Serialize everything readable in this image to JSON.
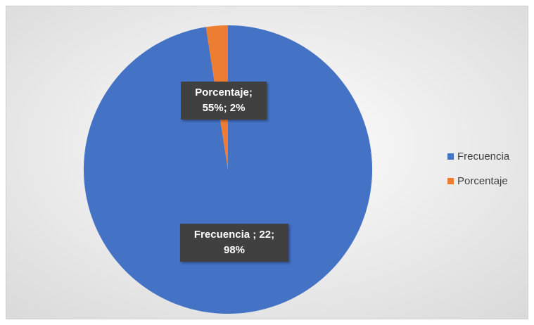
{
  "chart_data": {
    "type": "pie",
    "categories": [
      "Frecuencia",
      "Porcentaje"
    ],
    "values": [
      22,
      0.55
    ],
    "value_labels": [
      "Frecuencia ; 22; 98%",
      "Porcentaje; 55%; 2%"
    ],
    "colors": [
      "#4472c4",
      "#ed7d31"
    ],
    "legend": "right"
  }
}
